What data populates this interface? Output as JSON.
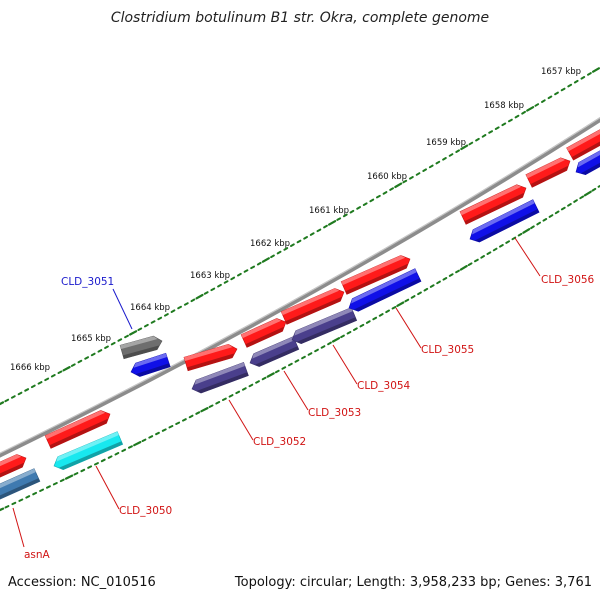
{
  "title": "Clostridium botulinum B1 str. Okra, complete genome",
  "accession": "Accession: NC_010516",
  "summary": "Topology: circular; Length: 3,958,233 bp; Genes: 3,761",
  "colors": {
    "forward_gene": "#ff1a1a",
    "reverse_gene": "#1010e8",
    "reverse_gene_dark": "#4a3f8c",
    "reverse_gene_cyan": "#18e8ef",
    "reverse_gene_steel": "#3f7ab0",
    "pseudo_gene": "#6e6e6e",
    "backbone": "#8c8c8c",
    "tick": "#1f7a1f",
    "label_red": "#d11414",
    "label_blue": "#1a1acc"
  },
  "kbp_labels": [
    "1657 kbp",
    "1658 kbp",
    "1659 kbp",
    "1660 kbp",
    "1661 kbp",
    "1662 kbp",
    "1663 kbp",
    "1664 kbp",
    "1665 kbp",
    "1666 kbp"
  ],
  "gene_labels": [
    {
      "text": "CLD_3051",
      "color": "label_blue"
    },
    {
      "text": "CLD_3056",
      "color": "label_red"
    },
    {
      "text": "CLD_3055",
      "color": "label_red"
    },
    {
      "text": "CLD_3054",
      "color": "label_red"
    },
    {
      "text": "CLD_3053",
      "color": "label_red"
    },
    {
      "text": "CLD_3052",
      "color": "label_red"
    },
    {
      "text": "CLD_3050",
      "color": "label_red"
    },
    {
      "text": "asnA",
      "color": "label_red"
    }
  ]
}
